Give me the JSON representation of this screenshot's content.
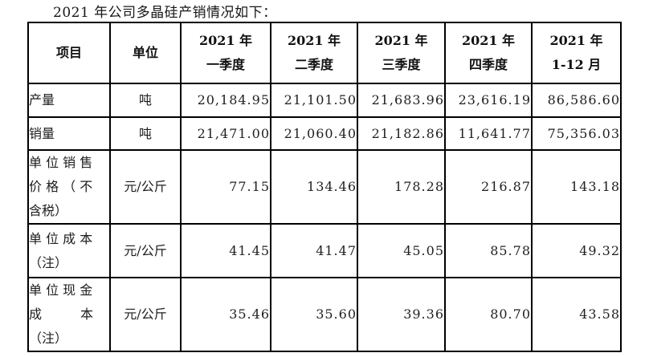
{
  "page": {
    "title": "2021 年公司多晶硅产销情况如下："
  },
  "table": {
    "headers": [
      "项目",
      "单位",
      "2021 年\n一季度",
      "2021 年\n二季度",
      "2021 年\n三季度",
      "2021 年\n四季度",
      "2021 年\n1-12 月"
    ],
    "rows": [
      {
        "item": "产量",
        "unit": "吨",
        "values": [
          "20,184.95",
          "21,101.50",
          "21,683.96",
          "23,616.19",
          "86,586.60"
        ]
      },
      {
        "item": "销量",
        "unit": "吨",
        "values": [
          "21,471.00",
          "21,060.40",
          "21,182.86",
          "11,641.77",
          "75,356.03"
        ]
      },
      {
        "item": "单 位 销 售\n价 格 （ 不\n含税）",
        "unit": "元/公斤",
        "values": [
          "77.15",
          "134.46",
          "178.28",
          "216.87",
          "143.18"
        ]
      },
      {
        "item": "单 位 成 本\n（注）",
        "unit": "元/公斤",
        "values": [
          "41.45",
          "41.47",
          "45.05",
          "85.78",
          "49.32"
        ]
      },
      {
        "item": "单 位 现 金\n成　　　本\n（注）",
        "unit": "元/公斤",
        "values": [
          "35.46",
          "35.60",
          "39.36",
          "80.70",
          "43.58"
        ]
      }
    ]
  }
}
